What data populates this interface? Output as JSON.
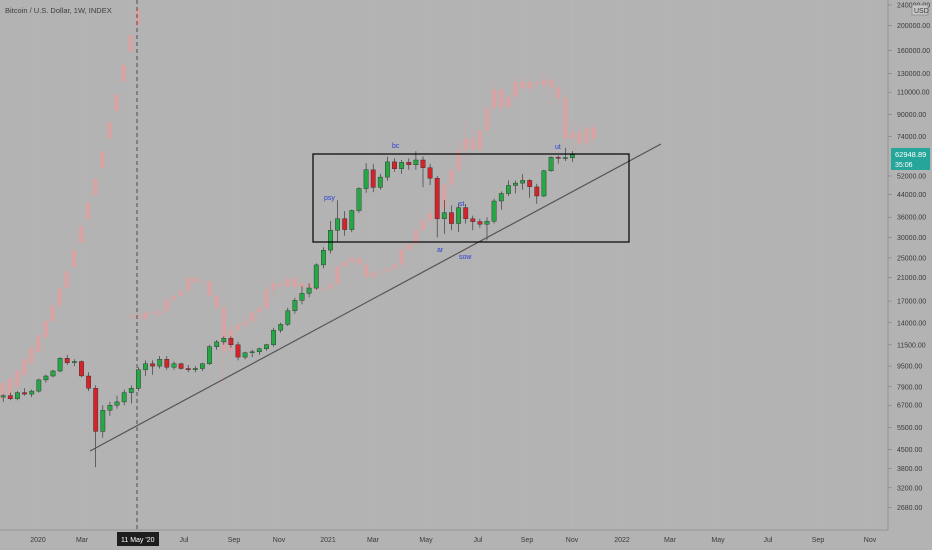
{
  "header": {
    "symbol_title": "Bitcoin / U.S. Dollar, 1W, INDEX"
  },
  "price_badge": {
    "currency": "USD",
    "last_price": "62948.89",
    "countdown": "35:06",
    "color": "#26a69a"
  },
  "colors": {
    "background": "#b3b3b3",
    "up_candle": "#26a645",
    "down_candle": "#d4242b",
    "ghost_candle": "#d7a3a3",
    "trendline": "#555555",
    "annotation": "#2b3fd6"
  },
  "chart_data": {
    "type": "candlestick",
    "y_scale": "log",
    "ylim": [
      2400,
      240000
    ],
    "y_ticks": [
      "240000.00",
      "200000.00",
      "160000.00",
      "130000.00",
      "110000.00",
      "90000.00",
      "74000.00",
      "52000.00",
      "44000.00",
      "36000.00",
      "30000.00",
      "25000.00",
      "21000.00",
      "17000.00",
      "14000.00",
      "11500.00",
      "9500.00",
      "7900.00",
      "6700.00",
      "5500.00",
      "4500.00",
      "3800.00",
      "3200.00",
      "2680.00"
    ],
    "x_ticks": [
      "2020",
      "Mar",
      "May",
      "Jul",
      "Sep",
      "Nov",
      "2021",
      "Mar",
      "May",
      "Jul",
      "Sep",
      "Nov",
      "2022",
      "Mar",
      "May",
      "Jul",
      "Sep",
      "Nov"
    ],
    "cursor_label": "11 May '20",
    "annotations": [
      "psy",
      "bc",
      "ar",
      "st",
      "sow",
      "ut"
    ],
    "candles": [
      [
        7200,
        7400,
        6900,
        7300
      ],
      [
        7300,
        7500,
        7000,
        7100
      ],
      [
        7100,
        7600,
        7000,
        7500
      ],
      [
        7500,
        7800,
        7300,
        7400
      ],
      [
        7400,
        7700,
        7200,
        7600
      ],
      [
        7600,
        8500,
        7500,
        8400
      ],
      [
        8400,
        8800,
        8200,
        8700
      ],
      [
        8700,
        9200,
        8600,
        9100
      ],
      [
        9100,
        10300,
        9000,
        10200
      ],
      [
        10200,
        10500,
        9600,
        9800
      ],
      [
        9800,
        10100,
        9500,
        9900
      ],
      [
        9900,
        10000,
        8600,
        8700
      ],
      [
        8700,
        9000,
        7600,
        7800
      ],
      [
        7800,
        8000,
        3850,
        5300
      ],
      [
        5300,
        6700,
        5000,
        6400
      ],
      [
        6400,
        6900,
        6100,
        6700
      ],
      [
        6700,
        7300,
        6500,
        6900
      ],
      [
        6900,
        7700,
        6700,
        7500
      ],
      [
        7500,
        8000,
        6800,
        7800
      ],
      [
        7800,
        9400,
        7600,
        9200
      ],
      [
        9200,
        10000,
        8700,
        9700
      ],
      [
        9700,
        10000,
        8800,
        9500
      ],
      [
        9500,
        10400,
        9300,
        10100
      ],
      [
        10100,
        10400,
        9200,
        9400
      ],
      [
        9400,
        9900,
        9200,
        9700
      ],
      [
        9700,
        9800,
        9200,
        9300
      ],
      [
        9300,
        9600,
        9000,
        9200
      ],
      [
        9200,
        9500,
        9000,
        9300
      ],
      [
        9300,
        9800,
        9100,
        9700
      ],
      [
        9700,
        11500,
        9600,
        11300
      ],
      [
        11300,
        12000,
        11000,
        11800
      ],
      [
        11800,
        12400,
        11500,
        12200
      ],
      [
        12200,
        12400,
        11200,
        11500
      ],
      [
        11500,
        11800,
        10000,
        10300
      ],
      [
        10300,
        10800,
        10100,
        10700
      ],
      [
        10700,
        11000,
        10300,
        10800
      ],
      [
        10800,
        11200,
        10500,
        11100
      ],
      [
        11100,
        11600,
        10900,
        11500
      ],
      [
        11500,
        13400,
        11300,
        13100
      ],
      [
        13100,
        14000,
        12800,
        13800
      ],
      [
        13800,
        16000,
        13600,
        15600
      ],
      [
        15600,
        17500,
        15200,
        17100
      ],
      [
        17100,
        19400,
        16500,
        18200
      ],
      [
        18200,
        19900,
        17600,
        19100
      ],
      [
        19100,
        23800,
        18800,
        23500
      ],
      [
        23500,
        27500,
        22800,
        26800
      ],
      [
        26800,
        34800,
        26000,
        32000
      ],
      [
        32000,
        41900,
        28800,
        35500
      ],
      [
        35500,
        38000,
        30500,
        32200
      ],
      [
        32200,
        38500,
        31500,
        38200
      ],
      [
        38200,
        47000,
        37400,
        46500
      ],
      [
        46500,
        58300,
        44800,
        55000
      ],
      [
        55000,
        58000,
        45000,
        47000
      ],
      [
        47000,
        53000,
        46000,
        51500
      ],
      [
        51500,
        61800,
        49800,
        59000
      ],
      [
        59000,
        61000,
        54000,
        55500
      ],
      [
        55500,
        60000,
        53000,
        58800
      ],
      [
        58800,
        61000,
        55000,
        57500
      ],
      [
        57500,
        64900,
        55000,
        60000
      ],
      [
        60000,
        62000,
        47000,
        56000
      ],
      [
        56000,
        58000,
        48000,
        51000
      ],
      [
        51000,
        52000,
        30000,
        35500
      ],
      [
        35500,
        42000,
        31000,
        37500
      ],
      [
        37500,
        40000,
        32000,
        34000
      ],
      [
        34000,
        41000,
        31500,
        39200
      ],
      [
        39200,
        40500,
        34000,
        35500
      ],
      [
        35500,
        36500,
        32000,
        34600
      ],
      [
        34600,
        35500,
        32700,
        33800
      ],
      [
        33800,
        36000,
        29300,
        34700
      ],
      [
        34700,
        42500,
        34000,
        41600
      ],
      [
        41600,
        45300,
        38500,
        44500
      ],
      [
        44500,
        50000,
        43500,
        47800
      ],
      [
        47800,
        50000,
        44500,
        48800
      ],
      [
        48800,
        52900,
        46000,
        50000
      ],
      [
        50000,
        50500,
        42800,
        47200
      ],
      [
        47200,
        48500,
        40600,
        43500
      ],
      [
        43500,
        55000,
        43000,
        54500
      ],
      [
        54500,
        62000,
        54000,
        61500
      ],
      [
        61500,
        62500,
        58000,
        61000
      ],
      [
        61000,
        67000,
        59500,
        61300
      ],
      [
        61300,
        65000,
        59000,
        62949
      ]
    ]
  }
}
